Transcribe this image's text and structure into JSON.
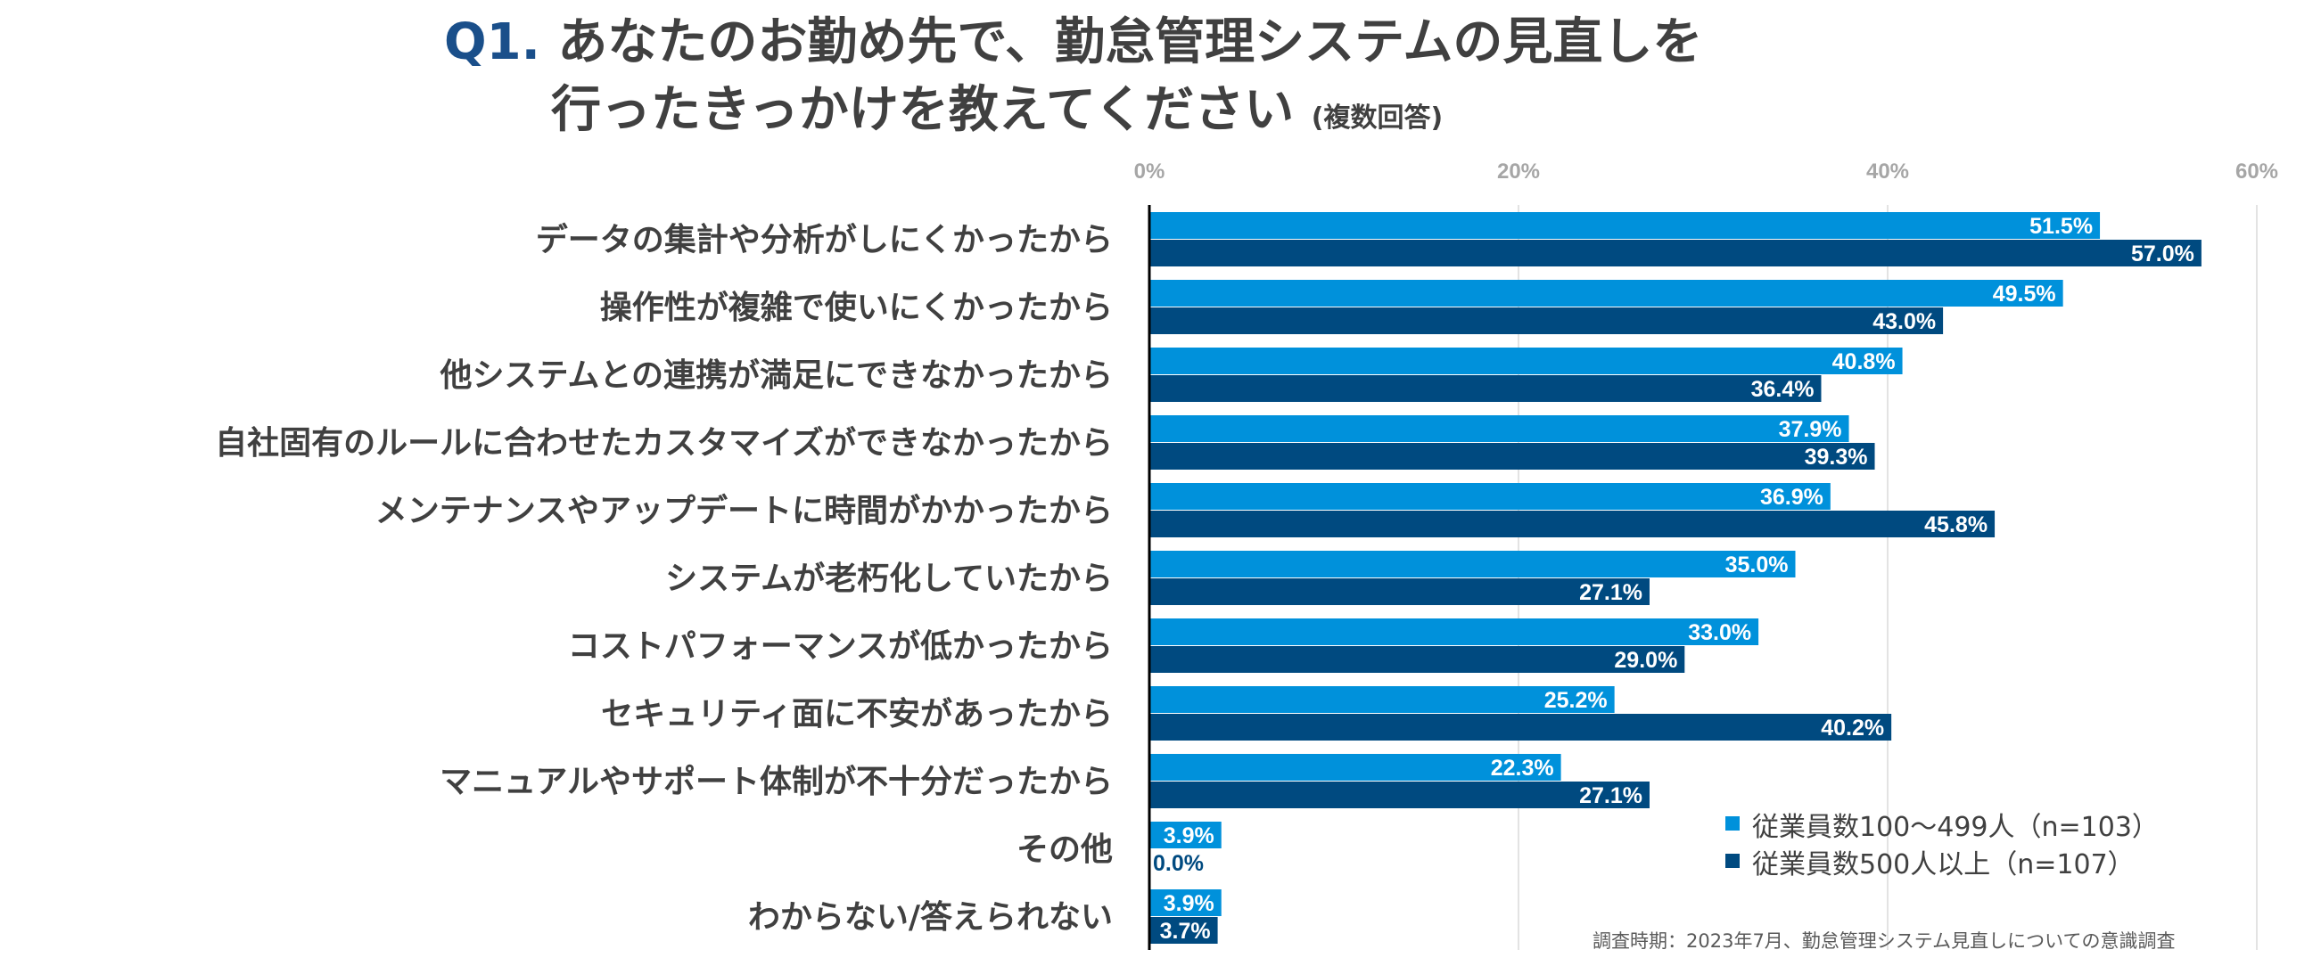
{
  "chart_data": {
    "type": "bar",
    "orientation": "horizontal",
    "title_prefix": "Q1.",
    "title_line1": "あなたのお勤め先で、勤怠管理システムの見直しを",
    "title_line2": "行ったきっかけを教えてください",
    "title_note": "(複数回答)",
    "categories": [
      "データの集計や分析がしにくかったから",
      "操作性が複雑で使いにくかったから",
      "他システムとの連携が満足にできなかったから",
      "自社固有のルールに合わせたカスタマイズができなかったから",
      "メンテナンスやアップデートに時間がかかったから",
      "システムが老朽化していたから",
      "コストパフォーマンスが低かったから",
      "セキュリティ面に不安があったから",
      "マニュアルやサポート体制が不十分だったから",
      "その他",
      "わからない/答えられない"
    ],
    "series": [
      {
        "name": "従業員数100〜499人（n=103）",
        "color": "#0091db",
        "values": [
          51.5,
          49.5,
          40.8,
          37.9,
          36.9,
          35.0,
          33.0,
          25.2,
          22.3,
          3.9,
          3.9
        ]
      },
      {
        "name": "従業員数500人以上（n=107）",
        "color": "#004a80",
        "values": [
          57.0,
          43.0,
          36.4,
          39.3,
          45.8,
          27.1,
          29.0,
          40.2,
          27.1,
          0.0,
          3.7
        ]
      }
    ],
    "xticks": [
      "0%",
      "20%",
      "40%",
      "60%"
    ],
    "xlim": [
      0,
      60
    ],
    "grid": true,
    "legend_position": "bottom-right",
    "footnote": "調査時期：2023年7月、勤怠管理システム見直しについての意識調査"
  }
}
